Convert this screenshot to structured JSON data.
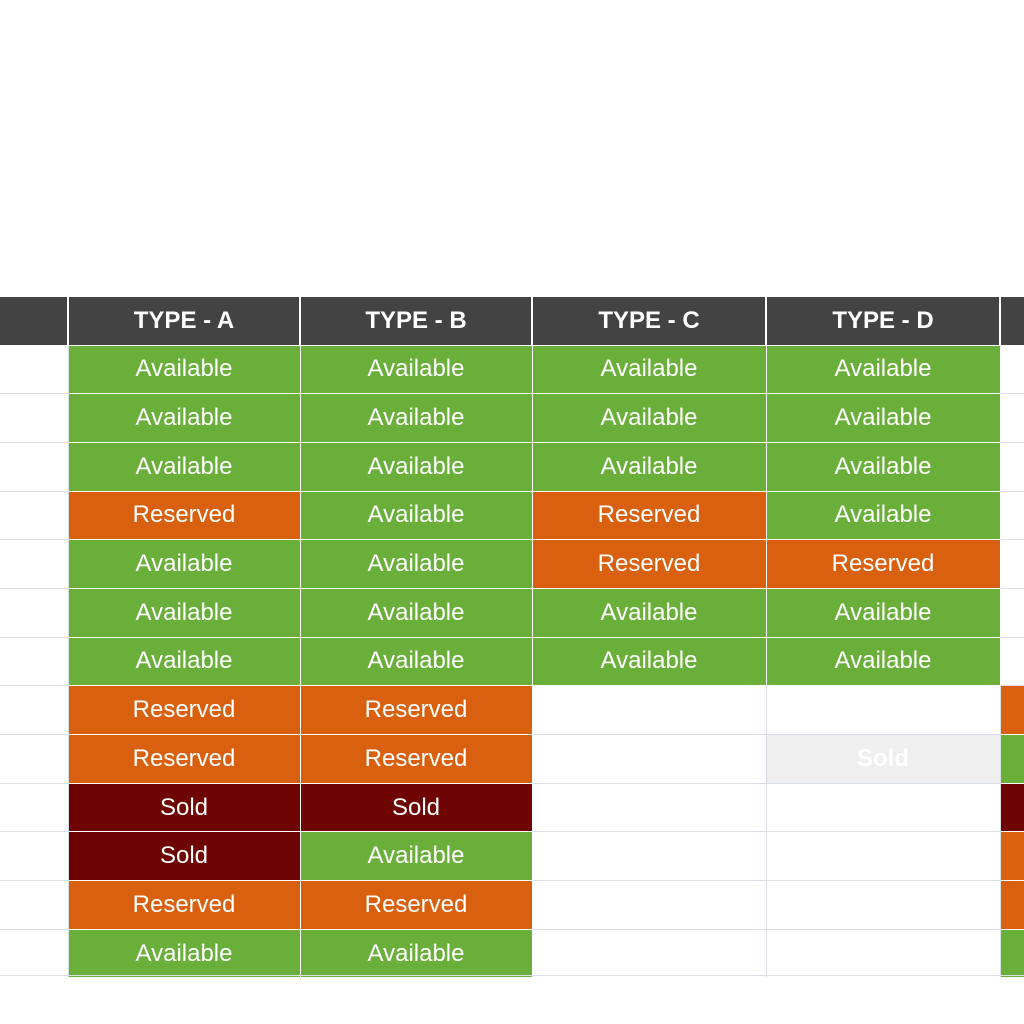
{
  "sheet": {
    "headers": [
      "",
      "TYPE - A",
      "TYPE - B",
      "TYPE - C",
      "TYPE - D",
      ""
    ],
    "status_colors": {
      "available": "#6aaf3a",
      "reserved": "#d8600e",
      "sold": "#6e0404",
      "header": "#434343"
    },
    "rows": [
      [
        "Available",
        "Available",
        "Available",
        "Available"
      ],
      [
        "Available",
        "Available",
        "Available",
        "Available"
      ],
      [
        "Available",
        "Available",
        "Available",
        "Available"
      ],
      [
        "Reserved",
        "Available",
        "Reserved",
        "Available"
      ],
      [
        "Available",
        "Available",
        "Reserved",
        "Reserved"
      ],
      [
        "Available",
        "Available",
        "Available",
        "Available"
      ],
      [
        "Available",
        "Available",
        "Available",
        "Available"
      ],
      [
        "Reserved",
        "Reserved",
        "",
        ""
      ],
      [
        "Reserved",
        "Reserved",
        "",
        "Sold"
      ],
      [
        "Sold",
        "Sold",
        "",
        ""
      ],
      [
        "Sold",
        "Available",
        "",
        ""
      ],
      [
        "Reserved",
        "Reserved",
        "",
        ""
      ],
      [
        "Available",
        "Available",
        "",
        ""
      ]
    ],
    "faded_cells": [
      "8.3"
    ],
    "edge_column": [
      "",
      "",
      "",
      "",
      "",
      "",
      "",
      "reserved",
      "available",
      "sold",
      "reserved",
      "reserved",
      "available"
    ]
  }
}
